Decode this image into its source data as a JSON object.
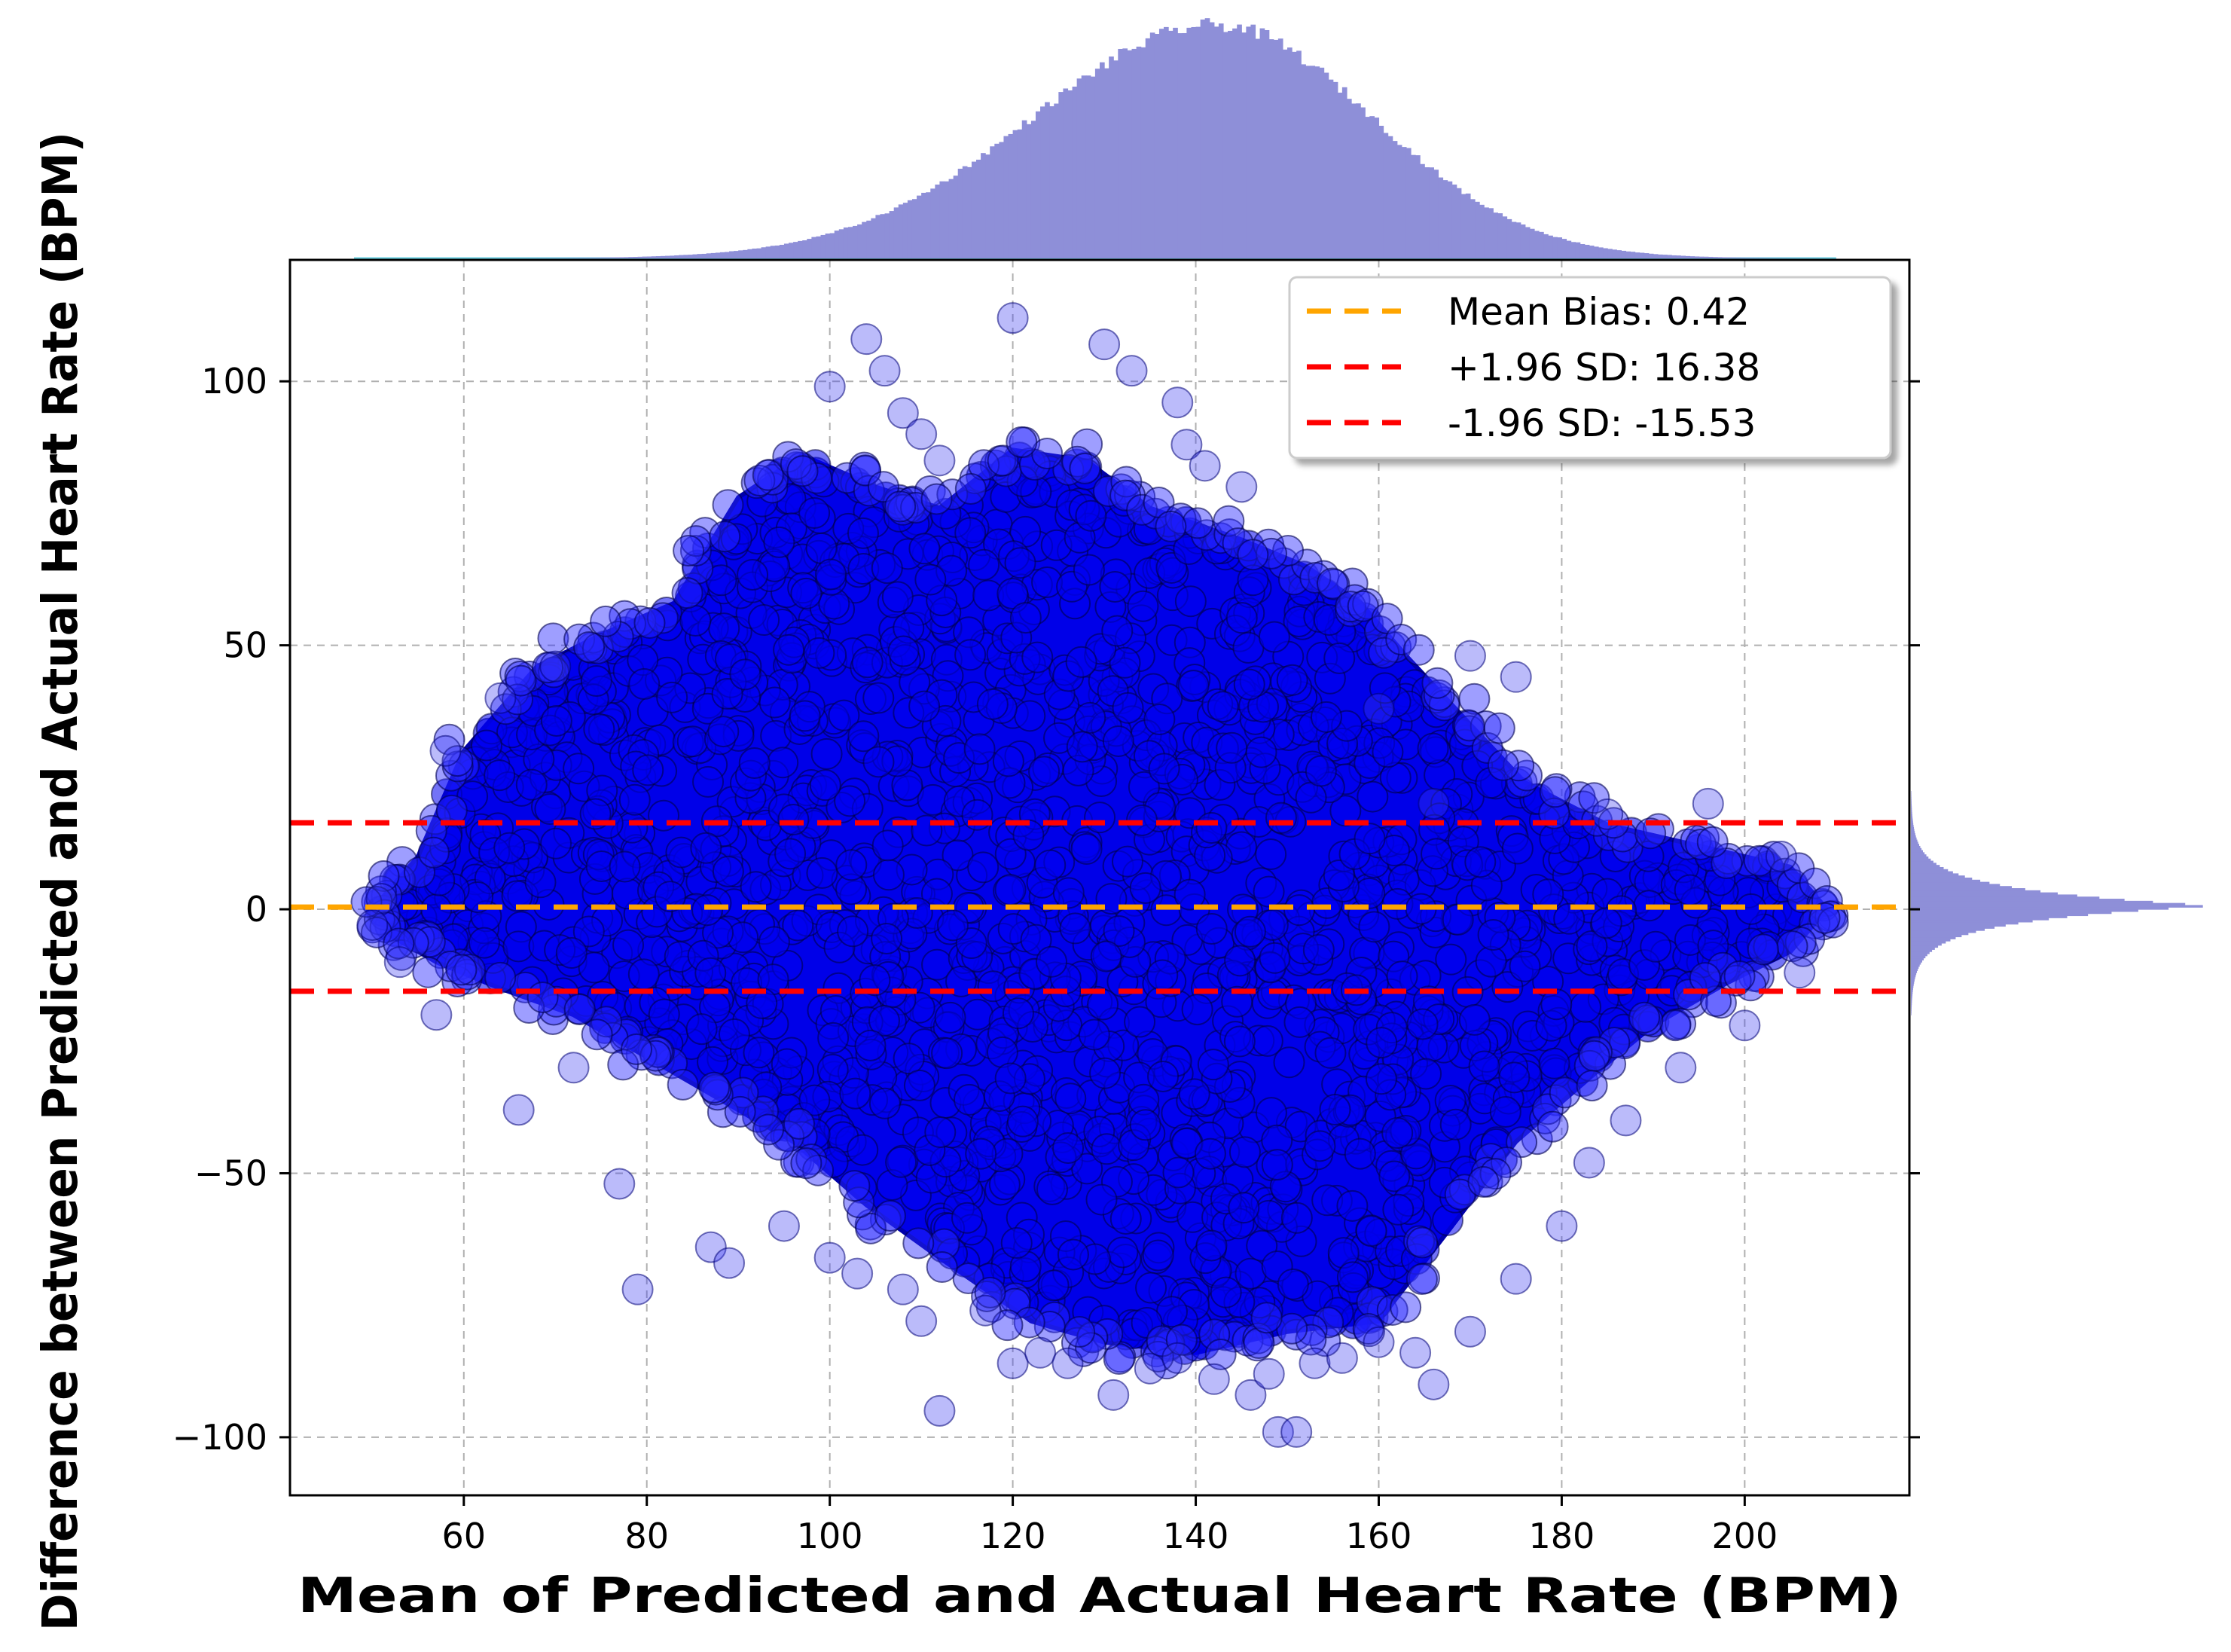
{
  "chart_data": {
    "type": "scatter",
    "title": "",
    "xlabel": "Mean of Predicted and Actual Heart Rate (BPM)",
    "ylabel": "Difference between Predicted and Actual Heart Rate (BPM)",
    "xlim": [
      41,
      218
    ],
    "ylim": [
      -111,
      123
    ],
    "xticks": [
      60,
      80,
      100,
      120,
      140,
      160,
      180,
      200
    ],
    "xtick_labels": [
      "60",
      "80",
      "100",
      "120",
      "140",
      "160",
      "180",
      "200"
    ],
    "yticks": [
      100,
      50,
      0,
      -50,
      -100
    ],
    "ytick_labels": [
      "100",
      "50",
      "0",
      "−50",
      "−100"
    ],
    "grid": true,
    "point_color": "#0000ff",
    "hist_color": "#8e8fd8",
    "lines": [
      {
        "name": "Mean Bias",
        "value": 0.42,
        "label": "Mean Bias: 0.42",
        "color": "#ffa500"
      },
      {
        "name": "+1.96 SD",
        "value": 16.38,
        "label": "+1.96 SD: 16.38",
        "color": "#ff0000"
      },
      {
        "name": "-1.96 SD",
        "value": -15.53,
        "label": "-1.96 SD: -15.53",
        "color": "#ff0000"
      }
    ],
    "legend_location": "top-right",
    "cloud_outline": [
      [
        50,
        0
      ],
      [
        55,
        10
      ],
      [
        60,
        30
      ],
      [
        68,
        46
      ],
      [
        75,
        52
      ],
      [
        83,
        58
      ],
      [
        90,
        78
      ],
      [
        97,
        86
      ],
      [
        105,
        80
      ],
      [
        112,
        76
      ],
      [
        120,
        87
      ],
      [
        128,
        85
      ],
      [
        135,
        76
      ],
      [
        145,
        70
      ],
      [
        152,
        65
      ],
      [
        158,
        58
      ],
      [
        163,
        48
      ],
      [
        170,
        35
      ],
      [
        176,
        24
      ],
      [
        185,
        16
      ],
      [
        195,
        12
      ],
      [
        205,
        8
      ],
      [
        209,
        0
      ],
      [
        205,
        -8
      ],
      [
        198,
        -14
      ],
      [
        190,
        -22
      ],
      [
        183,
        -32
      ],
      [
        175,
        -44
      ],
      [
        168,
        -60
      ],
      [
        160,
        -78
      ],
      [
        150,
        -80
      ],
      [
        140,
        -84
      ],
      [
        130,
        -82
      ],
      [
        122,
        -78
      ],
      [
        112,
        -66
      ],
      [
        104,
        -56
      ],
      [
        96,
        -44
      ],
      [
        88,
        -36
      ],
      [
        80,
        -28
      ],
      [
        72,
        -20
      ],
      [
        64,
        -15
      ],
      [
        57,
        -10
      ],
      [
        52,
        -5
      ]
    ],
    "outliers": [
      [
        104,
        108
      ],
      [
        106,
        102
      ],
      [
        100,
        99
      ],
      [
        120,
        112
      ],
      [
        130,
        107
      ],
      [
        133,
        102
      ],
      [
        138,
        96
      ],
      [
        139,
        88
      ],
      [
        141,
        84
      ],
      [
        145,
        80
      ],
      [
        108,
        94
      ],
      [
        110,
        90
      ],
      [
        112,
        85
      ],
      [
        160,
        38
      ],
      [
        166,
        20
      ],
      [
        170,
        48
      ],
      [
        175,
        44
      ],
      [
        185,
        18
      ],
      [
        196,
        20
      ],
      [
        204,
        10
      ],
      [
        70,
        46
      ],
      [
        64,
        40
      ],
      [
        58,
        30
      ],
      [
        51,
        2
      ],
      [
        50,
        -3
      ],
      [
        53,
        -10
      ],
      [
        57,
        -20
      ],
      [
        66,
        -38
      ],
      [
        72,
        -30
      ],
      [
        77,
        -52
      ],
      [
        79,
        -72
      ],
      [
        87,
        -64
      ],
      [
        89,
        -67
      ],
      [
        95,
        -60
      ],
      [
        100,
        -66
      ],
      [
        103,
        -69
      ],
      [
        108,
        -72
      ],
      [
        110,
        -78
      ],
      [
        112,
        -95
      ],
      [
        117,
        -76
      ],
      [
        120,
        -86
      ],
      [
        123,
        -84
      ],
      [
        126,
        -86
      ],
      [
        131,
        -92
      ],
      [
        135,
        -87
      ],
      [
        138,
        -85
      ],
      [
        142,
        -89
      ],
      [
        146,
        -92
      ],
      [
        149,
        -99
      ],
      [
        151,
        -99
      ],
      [
        148,
        -88
      ],
      [
        153,
        -86
      ],
      [
        156,
        -85
      ],
      [
        160,
        -82
      ],
      [
        164,
        -84
      ],
      [
        166,
        -90
      ],
      [
        170,
        -80
      ],
      [
        175,
        -70
      ],
      [
        180,
        -60
      ],
      [
        183,
        -48
      ],
      [
        187,
        -40
      ],
      [
        193,
        -30
      ],
      [
        200,
        -22
      ],
      [
        206,
        -12
      ]
    ],
    "x_marginal": {
      "mean": 143,
      "peak_x": 142,
      "bins_from": 48,
      "bins_to": 210,
      "note": "marginal histogram of x"
    },
    "y_marginal": {
      "mode": 0.5,
      "range": [
        -16,
        18
      ],
      "note": "marginal histogram of y"
    }
  }
}
